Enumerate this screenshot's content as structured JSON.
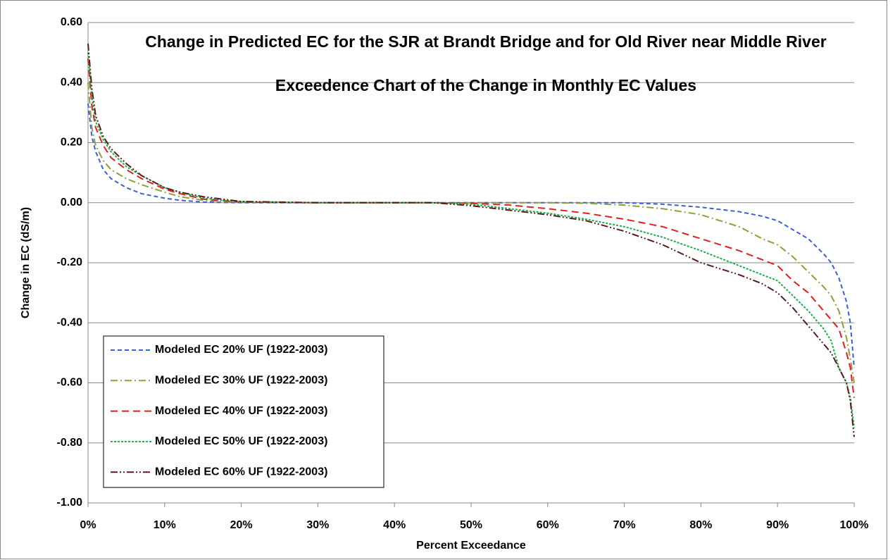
{
  "chart_data": {
    "type": "line",
    "title": "Change in Predicted EC for the SJR at Brandt Bridge and for Old River near Middle River",
    "subtitle": "Exceedence Chart of the Change in Monthly EC Values",
    "x_label": "Percent Exceedance",
    "y_label": "Change in EC (dS/m)",
    "x": [
      0,
      0.5,
      1,
      2,
      3,
      5,
      7,
      10,
      12,
      15,
      20,
      30,
      40,
      45,
      50,
      55,
      60,
      65,
      70,
      75,
      80,
      85,
      88,
      90,
      92,
      94,
      96,
      97,
      98,
      99,
      99.5,
      100
    ],
    "series": [
      {
        "name": "Modeled EC 20% UF (1922-2003)",
        "color": "#3a5fd6",
        "dash": "6,4",
        "values": [
          0.33,
          0.22,
          0.17,
          0.11,
          0.08,
          0.05,
          0.03,
          0.015,
          0.008,
          0.002,
          0,
          0,
          0,
          0,
          0,
          0,
          0,
          0,
          0,
          -0.005,
          -0.015,
          -0.03,
          -0.045,
          -0.06,
          -0.09,
          -0.12,
          -0.17,
          -0.2,
          -0.25,
          -0.33,
          -0.4,
          -0.55
        ]
      },
      {
        "name": "Modeled EC 30% UF (1922-2003)",
        "color": "#8aa23c",
        "dash": "10,4,2,4",
        "values": [
          0.4,
          0.25,
          0.19,
          0.14,
          0.11,
          0.08,
          0.06,
          0.035,
          0.02,
          0.008,
          0.001,
          0,
          0,
          0,
          0,
          0,
          0,
          -0.002,
          -0.008,
          -0.02,
          -0.04,
          -0.08,
          -0.12,
          -0.14,
          -0.18,
          -0.23,
          -0.28,
          -0.31,
          -0.36,
          -0.45,
          -0.52,
          -0.6
        ]
      },
      {
        "name": "Modeled EC 40% UF (1922-2003)",
        "color": "#e02020",
        "dash": "10,6",
        "values": [
          0.48,
          0.32,
          0.25,
          0.19,
          0.15,
          0.11,
          0.08,
          0.045,
          0.03,
          0.012,
          0.002,
          0,
          0,
          0,
          -0.002,
          -0.008,
          -0.02,
          -0.035,
          -0.055,
          -0.08,
          -0.12,
          -0.16,
          -0.19,
          -0.21,
          -0.26,
          -0.3,
          -0.36,
          -0.39,
          -0.42,
          -0.5,
          -0.55,
          -0.65
        ]
      },
      {
        "name": "Modeled EC 50% UF (1922-2003)",
        "color": "#16b04a",
        "dash": "3,2",
        "values": [
          0.5,
          0.35,
          0.27,
          0.21,
          0.17,
          0.12,
          0.09,
          0.05,
          0.035,
          0.015,
          0.003,
          0,
          0,
          0,
          -0.005,
          -0.02,
          -0.035,
          -0.055,
          -0.08,
          -0.115,
          -0.16,
          -0.21,
          -0.24,
          -0.26,
          -0.31,
          -0.36,
          -0.42,
          -0.46,
          -0.55,
          -0.6,
          -0.65,
          -0.75
        ]
      },
      {
        "name": "Modeled EC 60% UF (1922-2003)",
        "color": "#5a1a1a",
        "dash": "10,3,2,3,2,3",
        "values": [
          0.53,
          0.38,
          0.29,
          0.22,
          0.18,
          0.13,
          0.09,
          0.05,
          0.035,
          0.02,
          0.004,
          0,
          0,
          0,
          -0.01,
          -0.025,
          -0.04,
          -0.06,
          -0.095,
          -0.14,
          -0.2,
          -0.24,
          -0.27,
          -0.3,
          -0.35,
          -0.41,
          -0.47,
          -0.5,
          -0.55,
          -0.6,
          -0.66,
          -0.78
        ]
      }
    ],
    "xlim": [
      0,
      100
    ],
    "xticks": [
      {
        "value": 0,
        "label": "0%"
      },
      {
        "value": 10,
        "label": "10%"
      },
      {
        "value": 20,
        "label": "20%"
      },
      {
        "value": 30,
        "label": "30%"
      },
      {
        "value": 40,
        "label": "40%"
      },
      {
        "value": 50,
        "label": "50%"
      },
      {
        "value": 60,
        "label": "60%"
      },
      {
        "value": 70,
        "label": "70%"
      },
      {
        "value": 80,
        "label": "80%"
      },
      {
        "value": 90,
        "label": "90%"
      },
      {
        "value": 100,
        "label": "100%"
      }
    ],
    "ylim": [
      -1,
      0.6
    ],
    "yticks": [
      {
        "value": -1,
        "label": "-1.00"
      },
      {
        "value": -0.8,
        "label": "-0.80"
      },
      {
        "value": -0.6,
        "label": "-0.60"
      },
      {
        "value": -0.4,
        "label": "-0.40"
      },
      {
        "value": -0.2,
        "label": "-0.20"
      },
      {
        "value": 0,
        "label": "0.00"
      },
      {
        "value": 0.2,
        "label": "0.20"
      },
      {
        "value": 0.4,
        "label": "0.40"
      },
      {
        "value": 0.6,
        "label": "0.60"
      }
    ],
    "grid": true,
    "legend": "lower-left"
  }
}
